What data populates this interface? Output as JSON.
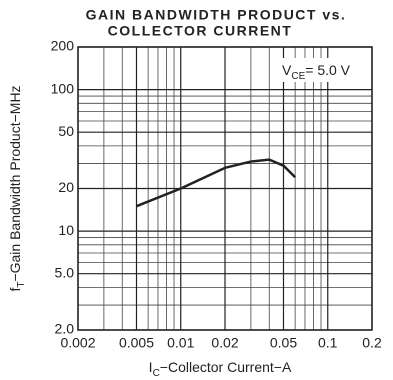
{
  "chart_data": {
    "type": "line",
    "title": [
      "GAIN BANDWIDTH PRODUCT vs.",
      "COLLECTOR CURRENT"
    ],
    "annotation": {
      "main": "V",
      "sub": "CE",
      "rest": "= 5.0 V"
    },
    "xlabel": {
      "main": "I",
      "sub": "C",
      "rest": "−Collector Current−A"
    },
    "ylabel": {
      "main": "f",
      "sub": "T",
      "rest": "−Gain Bandwidth Product−MHz"
    },
    "xscale": "log",
    "yscale": "log",
    "xlim": [
      0.002,
      0.2
    ],
    "ylim": [
      2,
      200
    ],
    "xticks": [
      0.002,
      0.005,
      0.01,
      0.02,
      0.05,
      0.1,
      0.2
    ],
    "yticks": [
      {
        "value": 2,
        "label": "2.0"
      },
      {
        "value": 5,
        "label": "5.0"
      },
      10,
      20,
      50,
      100,
      200
    ],
    "xgrid": [
      0.003,
      0.004,
      0.006,
      0.007,
      0.008,
      0.009,
      0.03,
      0.04,
      0.06,
      0.07,
      0.08,
      0.09
    ],
    "ygrid": [
      3,
      4,
      6,
      7,
      8,
      9,
      30,
      40,
      60,
      70,
      80,
      90
    ],
    "grid": true,
    "series": [
      {
        "color": "#222222",
        "x": [
          0.005,
          0.01,
          0.02,
          0.03,
          0.04,
          0.05,
          0.06
        ],
        "values": [
          15,
          20,
          28,
          31,
          32,
          29,
          24
        ]
      }
    ]
  }
}
